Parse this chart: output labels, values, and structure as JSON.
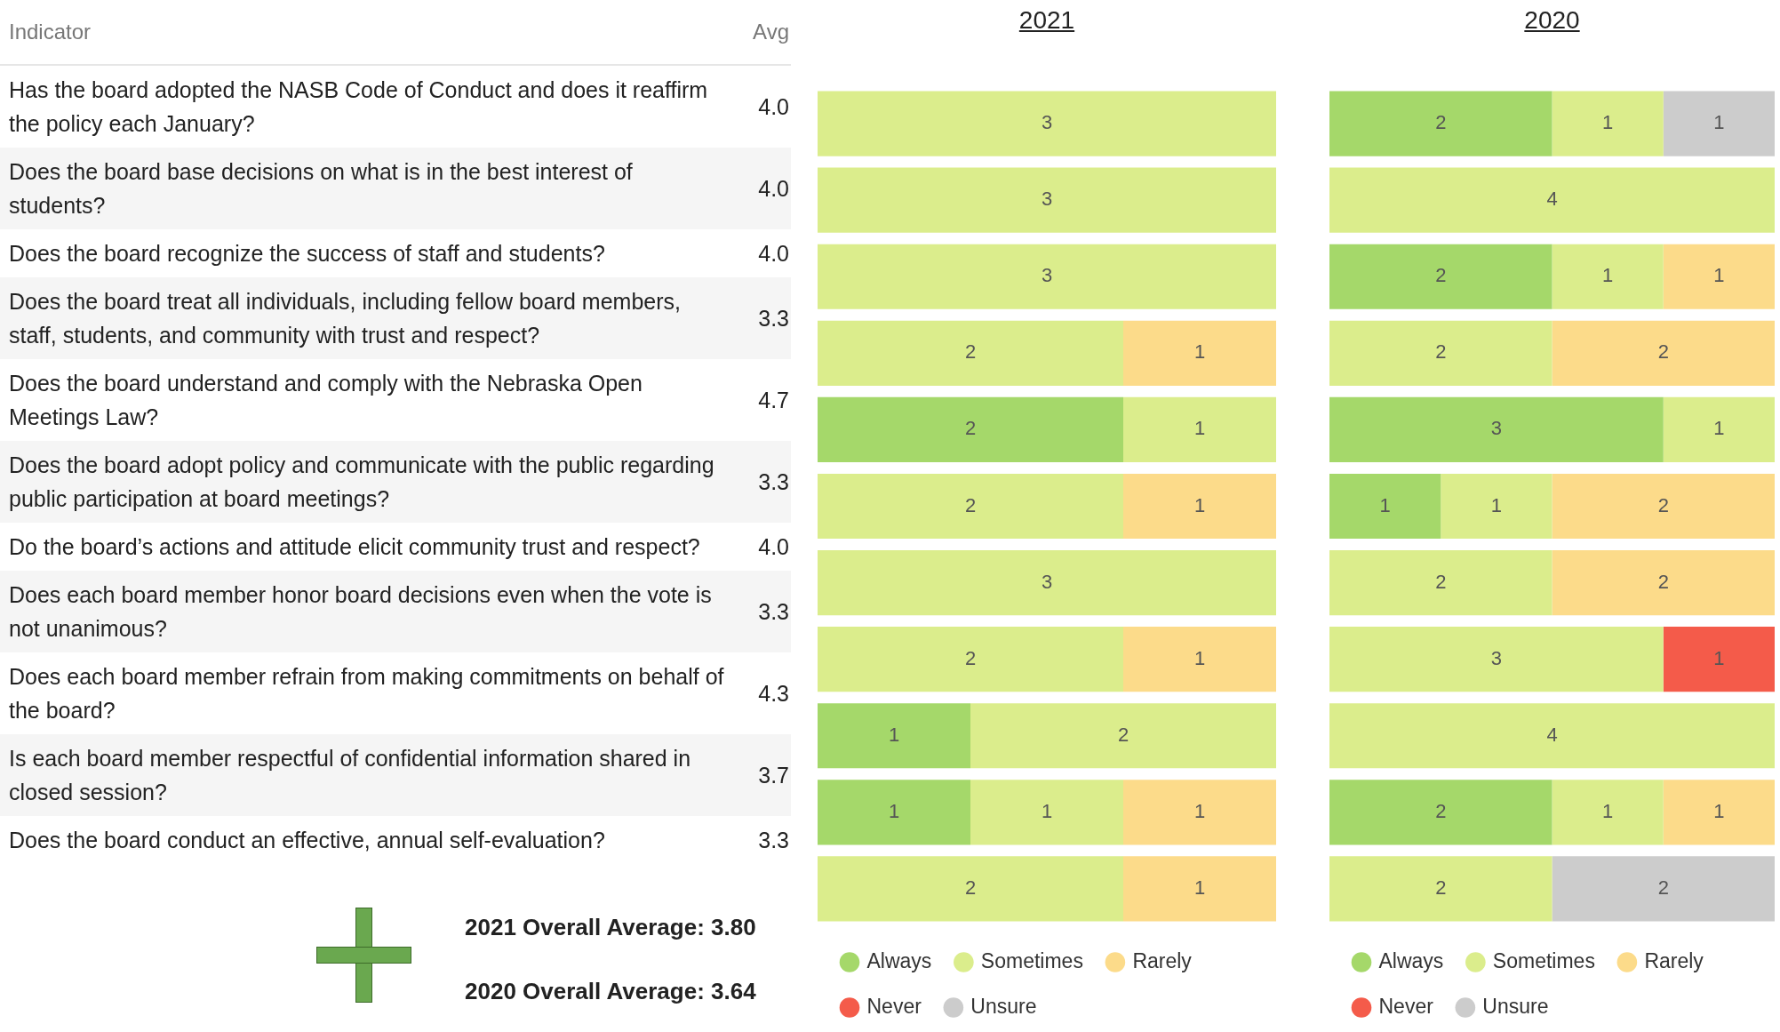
{
  "chart_data": [
    {
      "type": "other",
      "xlabel": "Indicator",
      "ylabel": "Avg",
      "categories": [
        "Has the board adopted the NASB Code of Conduct and does it reaffirm the policy each January?",
        "Does the board base decisions on what is in the best interest of students?",
        "Does the board recognize the success of staff and students?",
        "Does the board treat all individuals, including fellow board members, staff, students, and community with trust and respect?",
        "Does the board understand and comply with the Nebraska Open Meetings Law?",
        "Does the board adopt policy and communicate with the public regarding public participation at board meetings?",
        "Do the board’s actions and attitude elicit community trust and respect?",
        "Does each board member honor board decisions even when the vote is not unanimous?",
        "Does each board member refrain from making commitments on behalf of the board?",
        "Is each board member respectful of confidential information shared in closed session?",
        "Does the board conduct an effective, annual self-evaluation?"
      ],
      "value_labels": [
        "4.0",
        "4.0",
        "4.0",
        "3.3",
        "4.7",
        "3.3",
        "4.0",
        "3.3",
        "4.3",
        "3.7",
        "3.3"
      ],
      "annotations": [
        "2021 Overall Average: 3.80",
        "2020 Overall Average: 3.64"
      ]
    },
    {
      "type": "bar",
      "title": "2021",
      "orientation": "horizontal",
      "stacked": true,
      "data_labels": true,
      "legend": "bottom",
      "tick_labels": false,
      "categories": [
        null,
        null,
        null,
        null,
        null,
        null,
        null,
        null,
        null,
        null,
        null
      ],
      "series": [
        {
          "name": "Always",
          "color": "#a5d86a",
          "values": [
            null,
            null,
            null,
            null,
            2,
            null,
            null,
            null,
            1,
            1,
            null
          ]
        },
        {
          "name": "Sometimes",
          "color": "#dbed8c",
          "values": [
            3,
            3,
            3,
            2,
            1,
            2,
            3,
            2,
            2,
            1,
            2
          ]
        },
        {
          "name": "Rarely",
          "color": "#fcdb8a",
          "values": [
            null,
            null,
            null,
            1,
            null,
            1,
            null,
            1,
            null,
            1,
            1
          ]
        },
        {
          "name": "Never",
          "color": "#f45b4a",
          "values": [
            null,
            null,
            null,
            null,
            null,
            null,
            null,
            null,
            null,
            null,
            null
          ]
        },
        {
          "name": "Unsure",
          "color": "#cccccc",
          "values": [
            null,
            null,
            null,
            null,
            null,
            null,
            null,
            null,
            null,
            null,
            null
          ]
        }
      ]
    },
    {
      "type": "bar",
      "title": "2020",
      "orientation": "horizontal",
      "stacked": true,
      "data_labels": true,
      "legend": "bottom",
      "tick_labels": false,
      "categories": [
        null,
        null,
        null,
        null,
        null,
        null,
        null,
        null,
        null,
        null,
        null
      ],
      "series": [
        {
          "name": "Always",
          "color": "#a5d86a",
          "values": [
            2,
            null,
            2,
            null,
            3,
            1,
            null,
            null,
            null,
            2,
            null
          ]
        },
        {
          "name": "Sometimes",
          "color": "#dbed8c",
          "values": [
            1,
            4,
            1,
            2,
            1,
            1,
            2,
            3,
            4,
            1,
            2
          ]
        },
        {
          "name": "Rarely",
          "color": "#fcdb8a",
          "values": [
            null,
            null,
            1,
            2,
            null,
            2,
            2,
            null,
            null,
            1,
            null
          ]
        },
        {
          "name": "Never",
          "color": "#f45b4a",
          "values": [
            null,
            null,
            null,
            null,
            null,
            null,
            null,
            1,
            null,
            null,
            null
          ]
        },
        {
          "name": "Unsure",
          "color": "#cccccc",
          "values": [
            1,
            null,
            null,
            null,
            null,
            null,
            null,
            null,
            null,
            null,
            2
          ]
        }
      ]
    }
  ]
}
